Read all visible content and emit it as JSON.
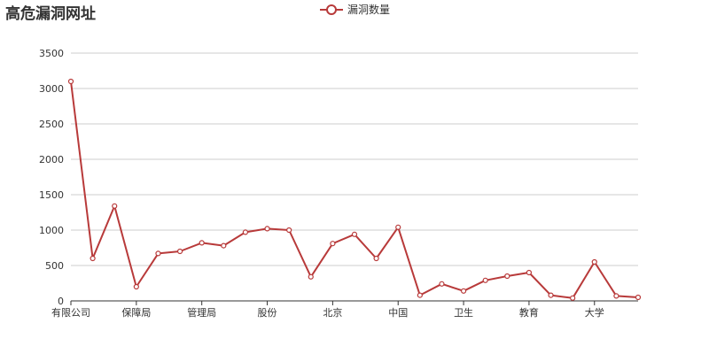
{
  "chart_data": {
    "type": "line",
    "title": "高危漏洞网址",
    "series": [
      {
        "name": "漏洞数量",
        "color": "#b83a3a",
        "values": [
          3100,
          600,
          1340,
          200,
          670,
          700,
          820,
          780,
          970,
          1020,
          1000,
          340,
          810,
          940,
          600,
          1040,
          80,
          240,
          140,
          290,
          350,
          400,
          80,
          40,
          550,
          70,
          50
        ]
      }
    ],
    "x_tick_labels": [
      {
        "index": 0,
        "label": "有限公司"
      },
      {
        "index": 3,
        "label": "保障局"
      },
      {
        "index": 6,
        "label": "管理局"
      },
      {
        "index": 9,
        "label": "股份"
      },
      {
        "index": 12,
        "label": "北京"
      },
      {
        "index": 15,
        "label": "中国"
      },
      {
        "index": 18,
        "label": "卫生"
      },
      {
        "index": 21,
        "label": "教育"
      },
      {
        "index": 24,
        "label": "大学"
      }
    ],
    "yticks": [
      0,
      500,
      1000,
      1500,
      2000,
      2500,
      3000,
      3500
    ],
    "ylim": [
      0,
      3500
    ],
    "grid": true,
    "legend_position": "top-center"
  }
}
